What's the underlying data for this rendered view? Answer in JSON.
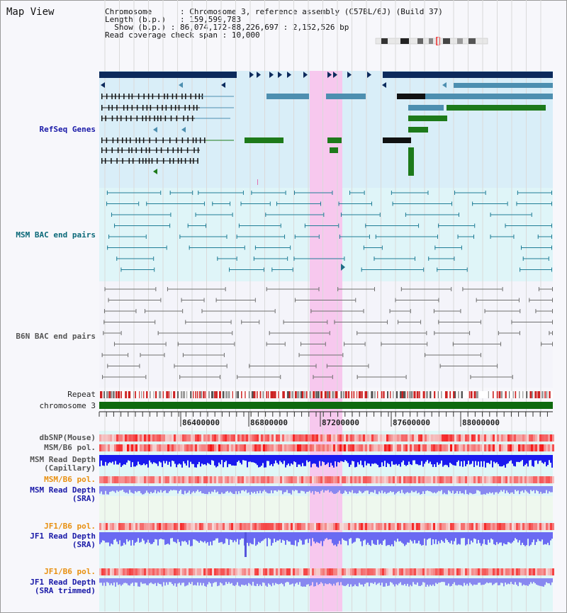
{
  "view_title": "Map View",
  "info": {
    "chromosome_key": "Chromosome",
    "chromosome_val": "Chromosome 3, reference assembly (C57BL/6J) (Build 37)",
    "length_key": "Length (b.p.)",
    "length_val": "159,599,783",
    "show_key": "Show (b.p.)",
    "show_val": "86,074,172-88,226,697 : 2,152,526 bp",
    "coverage_key": "Read coverage check span",
    "coverage_val": "10,000"
  },
  "tracks": {
    "refseq": "RefSeq Genes",
    "msm_bac": "MSM BAC end pairs",
    "b6n_bac": "B6N BAC end pairs",
    "repeat": "Repeat",
    "chromosome": "chromosome 3",
    "dbsnp": "dbSNP(Mouse)",
    "msm_pol1": "MSM/B6 pol.",
    "msm_depth_cap_1": "MSM Read Depth",
    "msm_depth_cap_2": "(Capillary)",
    "msm_pol2": "MSM/B6 pol.",
    "msm_depth_sra_1": "MSM Read Depth",
    "msm_depth_sra_2": "(SRA)",
    "jf1_pol1": "JF1/B6 pol.",
    "jf1_depth_sra_1": "JF1 Read Depth",
    "jf1_depth_sra_2": "(SRA)",
    "jf1_pol2": "JF1/B6 pol.",
    "jf1_depth_trim_1": "JF1 Read Depth",
    "jf1_depth_trim_2": "(SRA trimmed)"
  },
  "ruler": {
    "ticks": [
      "86400000",
      "86800000",
      "87200000",
      "87600000",
      "88000000"
    ]
  },
  "colors": {
    "refseq_bg": "#d9eef8",
    "bac_bg": "#dff5f8",
    "highlight": "#f7c8ee",
    "navy": "#0c2a5c",
    "gene_blue": "#3f8cb5",
    "gene_green": "#1d7a1a",
    "msm_line": "#1f7d96",
    "b6n_line": "#6f6f6f",
    "chrom_green": "#0f6a0f",
    "depth_blue": "#1a1aee",
    "depth_light": "#8888f0"
  }
}
